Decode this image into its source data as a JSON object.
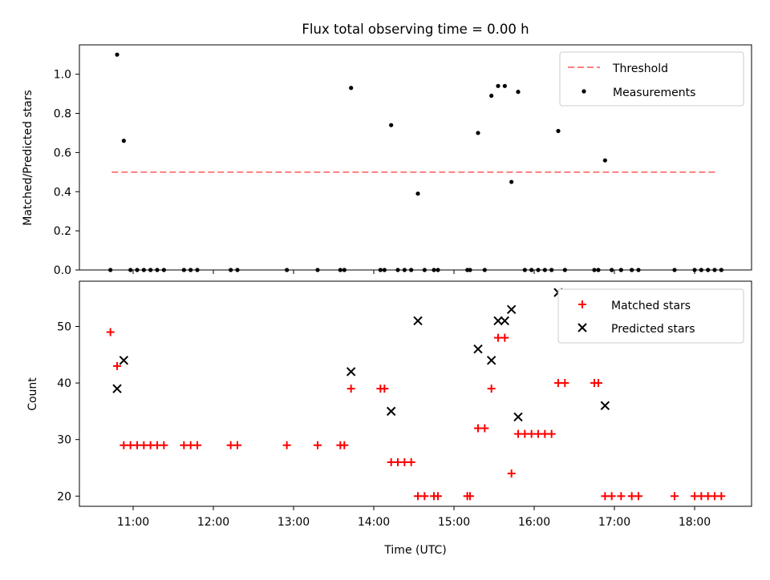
{
  "chart_data": {
    "title": "Flux total observing time = 0.00 h",
    "x_ticks": [
      "11:00",
      "12:00",
      "13:00",
      "14:00",
      "15:00",
      "16:00",
      "17:00",
      "18:00"
    ],
    "xlabel": "Time (UTC)",
    "top": {
      "type": "scatter",
      "ylabel": "Matched/Predicted stars",
      "ylim": [
        0,
        1.15
      ],
      "y_ticks": [
        "0.0",
        "0.2",
        "0.4",
        "0.6",
        "0.8",
        "1.0"
      ],
      "legend": [
        "Threshold",
        "Measurements"
      ],
      "legend_position": "top-right",
      "threshold": {
        "name": "Threshold",
        "value": 0.5,
        "x_range": [
          "10:44",
          "18:17"
        ],
        "color": "#ff7f7f"
      },
      "measurements": {
        "name": "Measurements",
        "color": "#000000",
        "points": [
          [
            "10:43",
            0
          ],
          [
            "10:48",
            1.1
          ],
          [
            "10:53",
            0.66
          ],
          [
            "10:58",
            0
          ],
          [
            "11:03",
            0
          ],
          [
            "11:08",
            0
          ],
          [
            "11:13",
            0
          ],
          [
            "11:18",
            0
          ],
          [
            "11:23",
            0
          ],
          [
            "11:38",
            0
          ],
          [
            "11:43",
            0
          ],
          [
            "11:48",
            0
          ],
          [
            "12:13",
            0
          ],
          [
            "12:18",
            0
          ],
          [
            "12:55",
            0
          ],
          [
            "13:18",
            0
          ],
          [
            "13:35",
            0
          ],
          [
            "13:38",
            0
          ],
          [
            "13:43",
            0.93
          ],
          [
            "14:05",
            0
          ],
          [
            "14:08",
            0
          ],
          [
            "14:13",
            0.74
          ],
          [
            "14:18",
            0
          ],
          [
            "14:23",
            0
          ],
          [
            "14:28",
            0
          ],
          [
            "14:33",
            0.39
          ],
          [
            "14:38",
            0
          ],
          [
            "14:45",
            0
          ],
          [
            "14:48",
            0
          ],
          [
            "15:10",
            0
          ],
          [
            "15:12",
            0
          ],
          [
            "15:18",
            0.7
          ],
          [
            "15:23",
            0
          ],
          [
            "15:28",
            0.89
          ],
          [
            "15:33",
            0.94
          ],
          [
            "15:38",
            0.94
          ],
          [
            "15:43",
            0.45
          ],
          [
            "15:48",
            0.91
          ],
          [
            "15:53",
            0
          ],
          [
            "15:58",
            0
          ],
          [
            "16:03",
            0
          ],
          [
            "16:08",
            0
          ],
          [
            "16:13",
            0
          ],
          [
            "16:18",
            0.71
          ],
          [
            "16:23",
            0
          ],
          [
            "16:45",
            0
          ],
          [
            "16:48",
            0
          ],
          [
            "16:53",
            0.56
          ],
          [
            "16:58",
            0
          ],
          [
            "17:05",
            0
          ],
          [
            "17:13",
            0
          ],
          [
            "17:18",
            0
          ],
          [
            "17:45",
            0
          ],
          [
            "18:00",
            0
          ],
          [
            "18:05",
            0
          ],
          [
            "18:10",
            0
          ],
          [
            "18:15",
            0
          ],
          [
            "18:20",
            0
          ]
        ]
      }
    },
    "bottom": {
      "type": "scatter",
      "ylabel": "Count",
      "ylim": [
        18.2,
        58
      ],
      "y_ticks": [
        "20",
        "30",
        "40",
        "50"
      ],
      "legend": [
        "Matched stars",
        "Predicted stars"
      ],
      "legend_position": "top-right",
      "matched": {
        "name": "Matched stars",
        "color": "#ff0000",
        "points": [
          [
            "10:43",
            49
          ],
          [
            "10:48",
            43
          ],
          [
            "10:53",
            29
          ],
          [
            "10:58",
            29
          ],
          [
            "11:03",
            29
          ],
          [
            "11:08",
            29
          ],
          [
            "11:13",
            29
          ],
          [
            "11:18",
            29
          ],
          [
            "11:23",
            29
          ],
          [
            "11:38",
            29
          ],
          [
            "11:43",
            29
          ],
          [
            "11:48",
            29
          ],
          [
            "12:13",
            29
          ],
          [
            "12:18",
            29
          ],
          [
            "12:55",
            29
          ],
          [
            "13:18",
            29
          ],
          [
            "13:35",
            29
          ],
          [
            "13:38",
            29
          ],
          [
            "13:43",
            39
          ],
          [
            "14:05",
            39
          ],
          [
            "14:08",
            39
          ],
          [
            "14:13",
            26
          ],
          [
            "14:18",
            26
          ],
          [
            "14:23",
            26
          ],
          [
            "14:28",
            26
          ],
          [
            "14:33",
            20
          ],
          [
            "14:38",
            20
          ],
          [
            "14:45",
            20
          ],
          [
            "14:48",
            20
          ],
          [
            "15:10",
            20
          ],
          [
            "15:12",
            20
          ],
          [
            "15:18",
            32
          ],
          [
            "15:23",
            32
          ],
          [
            "15:28",
            39
          ],
          [
            "15:33",
            48
          ],
          [
            "15:38",
            48
          ],
          [
            "15:43",
            24
          ],
          [
            "15:48",
            31
          ],
          [
            "15:53",
            31
          ],
          [
            "15:58",
            31
          ],
          [
            "16:03",
            31
          ],
          [
            "16:08",
            31
          ],
          [
            "16:13",
            31
          ],
          [
            "16:18",
            40
          ],
          [
            "16:23",
            40
          ],
          [
            "16:45",
            40
          ],
          [
            "16:48",
            40
          ],
          [
            "16:53",
            20
          ],
          [
            "16:58",
            20
          ],
          [
            "17:05",
            20
          ],
          [
            "17:13",
            20
          ],
          [
            "17:18",
            20
          ],
          [
            "17:45",
            20
          ],
          [
            "18:00",
            20
          ],
          [
            "18:05",
            20
          ],
          [
            "18:10",
            20
          ],
          [
            "18:15",
            20
          ],
          [
            "18:20",
            20
          ]
        ]
      },
      "predicted": {
        "name": "Predicted stars",
        "color": "#000000",
        "points": [
          [
            "10:48",
            39
          ],
          [
            "10:53",
            44
          ],
          [
            "13:43",
            42
          ],
          [
            "14:13",
            35
          ],
          [
            "14:33",
            51
          ],
          [
            "15:18",
            46
          ],
          [
            "15:28",
            44
          ],
          [
            "15:33",
            51
          ],
          [
            "15:38",
            51
          ],
          [
            "15:43",
            53
          ],
          [
            "15:48",
            34
          ],
          [
            "16:18",
            56
          ],
          [
            "16:53",
            36
          ]
        ]
      }
    }
  }
}
